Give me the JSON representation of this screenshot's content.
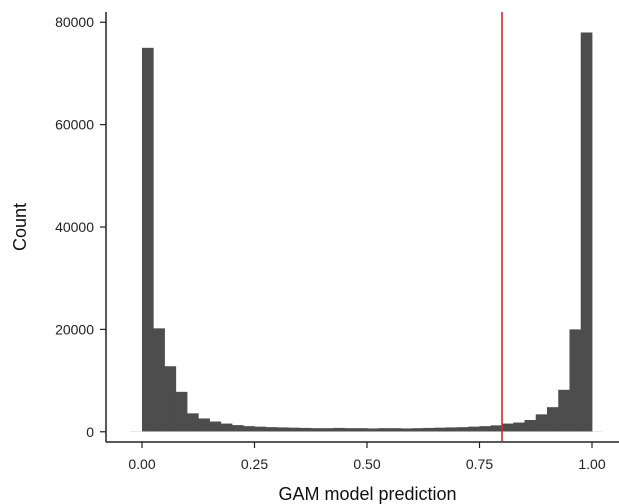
{
  "chart_data": {
    "type": "bar",
    "subtype": "histogram",
    "title": "",
    "xlabel": "GAM model prediction",
    "ylabel": "Count",
    "xlim": [
      -0.08,
      1.06
    ],
    "ylim": [
      -2000,
      82000
    ],
    "x_ticks": [
      0.0,
      0.25,
      0.5,
      0.75,
      1.0
    ],
    "x_tick_labels": [
      "0.00",
      "0.25",
      "0.50",
      "0.75",
      "1.00"
    ],
    "y_ticks": [
      0,
      20000,
      40000,
      60000,
      80000
    ],
    "y_tick_labels": [
      "0",
      "20000",
      "40000",
      "60000",
      "80000"
    ],
    "bin_width": 0.025,
    "bin_starts": [
      0.0,
      0.025,
      0.05,
      0.075,
      0.1,
      0.125,
      0.15,
      0.175,
      0.2,
      0.225,
      0.25,
      0.275,
      0.3,
      0.325,
      0.35,
      0.375,
      0.4,
      0.425,
      0.45,
      0.475,
      0.5,
      0.525,
      0.55,
      0.575,
      0.6,
      0.625,
      0.65,
      0.675,
      0.7,
      0.725,
      0.75,
      0.775,
      0.8,
      0.825,
      0.85,
      0.875,
      0.9,
      0.925,
      0.95,
      0.975
    ],
    "values": [
      75000,
      20200,
      12800,
      7800,
      3600,
      2600,
      2000,
      1600,
      1300,
      1100,
      1000,
      900,
      850,
      800,
      750,
      700,
      700,
      750,
      700,
      700,
      650,
      700,
      700,
      650,
      700,
      750,
      800,
      850,
      900,
      1000,
      1100,
      1250,
      1600,
      1800,
      2300,
      3400,
      4800,
      8200,
      20000,
      78000
    ],
    "bar_color": "#4d4d4d",
    "reference_line": {
      "x": 0.8,
      "color": "#d62728"
    },
    "grid": false,
    "legend": "none"
  }
}
